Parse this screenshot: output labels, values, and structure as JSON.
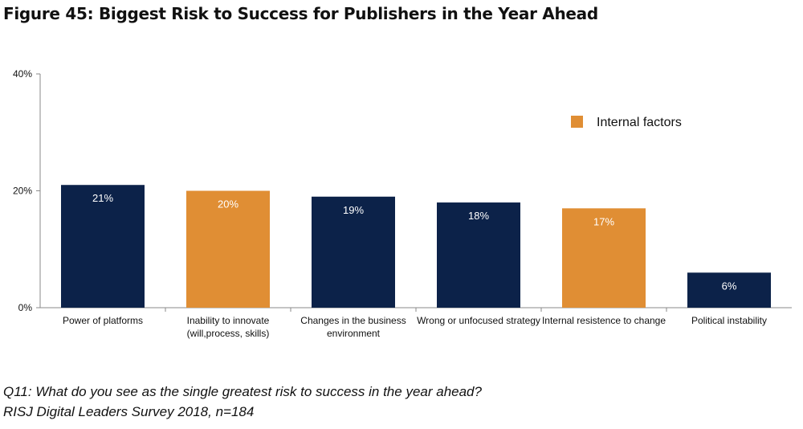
{
  "title": "Figure 45: Biggest Risk to Success for Publishers in the Year Ahead",
  "footnote": {
    "question": "Q11: What do you see as the single greatest risk to success in the year ahead?",
    "source": "RISJ Digital Leaders Survey 2018, n=184"
  },
  "colors": {
    "external": "#0c2249",
    "internal": "#e08e34",
    "axis": "#8a8a8a",
    "label": "#111111",
    "value_label": "#ffffff"
  },
  "chart_data": {
    "type": "bar",
    "title": "Figure 45: Biggest Risk to Success for Publishers in the Year Ahead",
    "xlabel": "",
    "ylabel": "",
    "ylim": [
      0,
      40
    ],
    "yticks": [
      {
        "value": 0,
        "label": "0%"
      },
      {
        "value": 20,
        "label": "20%"
      },
      {
        "value": 40,
        "label": "40%"
      }
    ],
    "grid": false,
    "categories": [
      [
        "Power of platforms"
      ],
      [
        "Inability to innovate",
        "(will,process, skills)"
      ],
      [
        "Changes in the business",
        "environment"
      ],
      [
        "Wrong or unfocused strategy"
      ],
      [
        "Internal resistence to change"
      ],
      [
        "Political instability"
      ]
    ],
    "values": [
      21,
      20,
      19,
      18,
      17,
      6
    ],
    "value_labels": [
      "21%",
      "20%",
      "19%",
      "18%",
      "17%",
      "6%"
    ],
    "groups": [
      "external",
      "internal",
      "external",
      "external",
      "internal",
      "external"
    ],
    "legend": {
      "placement": "top-right",
      "entries": [
        {
          "label": "Internal factors",
          "group": "internal"
        }
      ]
    }
  }
}
